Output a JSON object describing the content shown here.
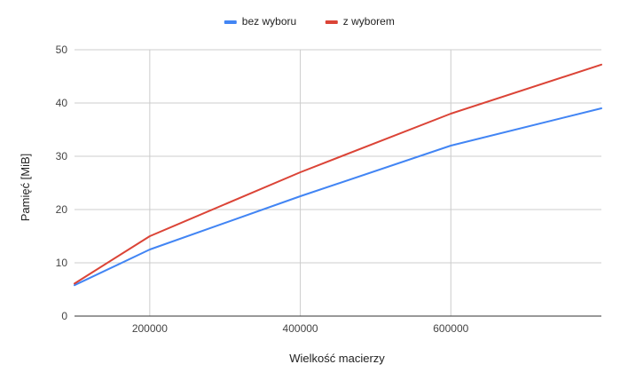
{
  "chart_data": {
    "type": "line",
    "title": "",
    "xlabel": "Wielkość macierzy",
    "ylabel": "Pamięć [MiB]",
    "xlim": [
      100000,
      800000
    ],
    "ylim": [
      0,
      50
    ],
    "xticks": [
      200000,
      400000,
      600000
    ],
    "xtick_labels": [
      "200000",
      "400000",
      "600000"
    ],
    "yticks": [
      0,
      10,
      20,
      30,
      40,
      50
    ],
    "ytick_labels": [
      "0",
      "10",
      "20",
      "30",
      "40",
      "50"
    ],
    "grid": true,
    "legend_position": "top",
    "x": [
      100000,
      200000,
      400000,
      600000,
      800000
    ],
    "series": [
      {
        "name": "bez wyboru",
        "color": "#4285f4",
        "values": [
          5.8,
          12.5,
          22.5,
          32,
          39
        ]
      },
      {
        "name": "z wyborem",
        "color": "#db4437",
        "values": [
          6.1,
          15,
          27,
          38,
          47.2
        ]
      }
    ]
  }
}
